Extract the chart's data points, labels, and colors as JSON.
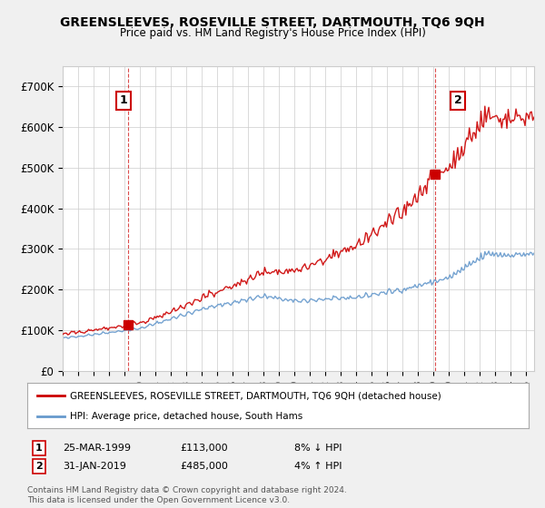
{
  "title": "GREENSLEEVES, ROSEVILLE STREET, DARTMOUTH, TQ6 9QH",
  "subtitle": "Price paid vs. HM Land Registry's House Price Index (HPI)",
  "legend_label_red": "GREENSLEEVES, ROSEVILLE STREET, DARTMOUTH, TQ6 9QH (detached house)",
  "legend_label_blue": "HPI: Average price, detached house, South Hams",
  "annotation1_label": "1",
  "annotation1_date": "25-MAR-1999",
  "annotation1_price": "£113,000",
  "annotation1_hpi": "8% ↓ HPI",
  "annotation2_label": "2",
  "annotation2_date": "31-JAN-2019",
  "annotation2_price": "£485,000",
  "annotation2_hpi": "4% ↑ HPI",
  "footer": "Contains HM Land Registry data © Crown copyright and database right 2024.\nThis data is licensed under the Open Government Licence v3.0.",
  "ylim": [
    0,
    750000
  ],
  "yticks": [
    0,
    100000,
    200000,
    300000,
    400000,
    500000,
    600000,
    700000
  ],
  "ytick_labels": [
    "£0",
    "£100K",
    "£200K",
    "£300K",
    "£400K",
    "£500K",
    "£600K",
    "£700K"
  ],
  "background_color": "#f0f0f0",
  "plot_background": "#ffffff",
  "red_color": "#cc0000",
  "blue_color": "#6699cc",
  "sale1_x": 1999.23,
  "sale1_y": 113000,
  "sale2_x": 2019.08,
  "sale2_y": 485000,
  "xmin": 1995,
  "xmax": 2025.5
}
